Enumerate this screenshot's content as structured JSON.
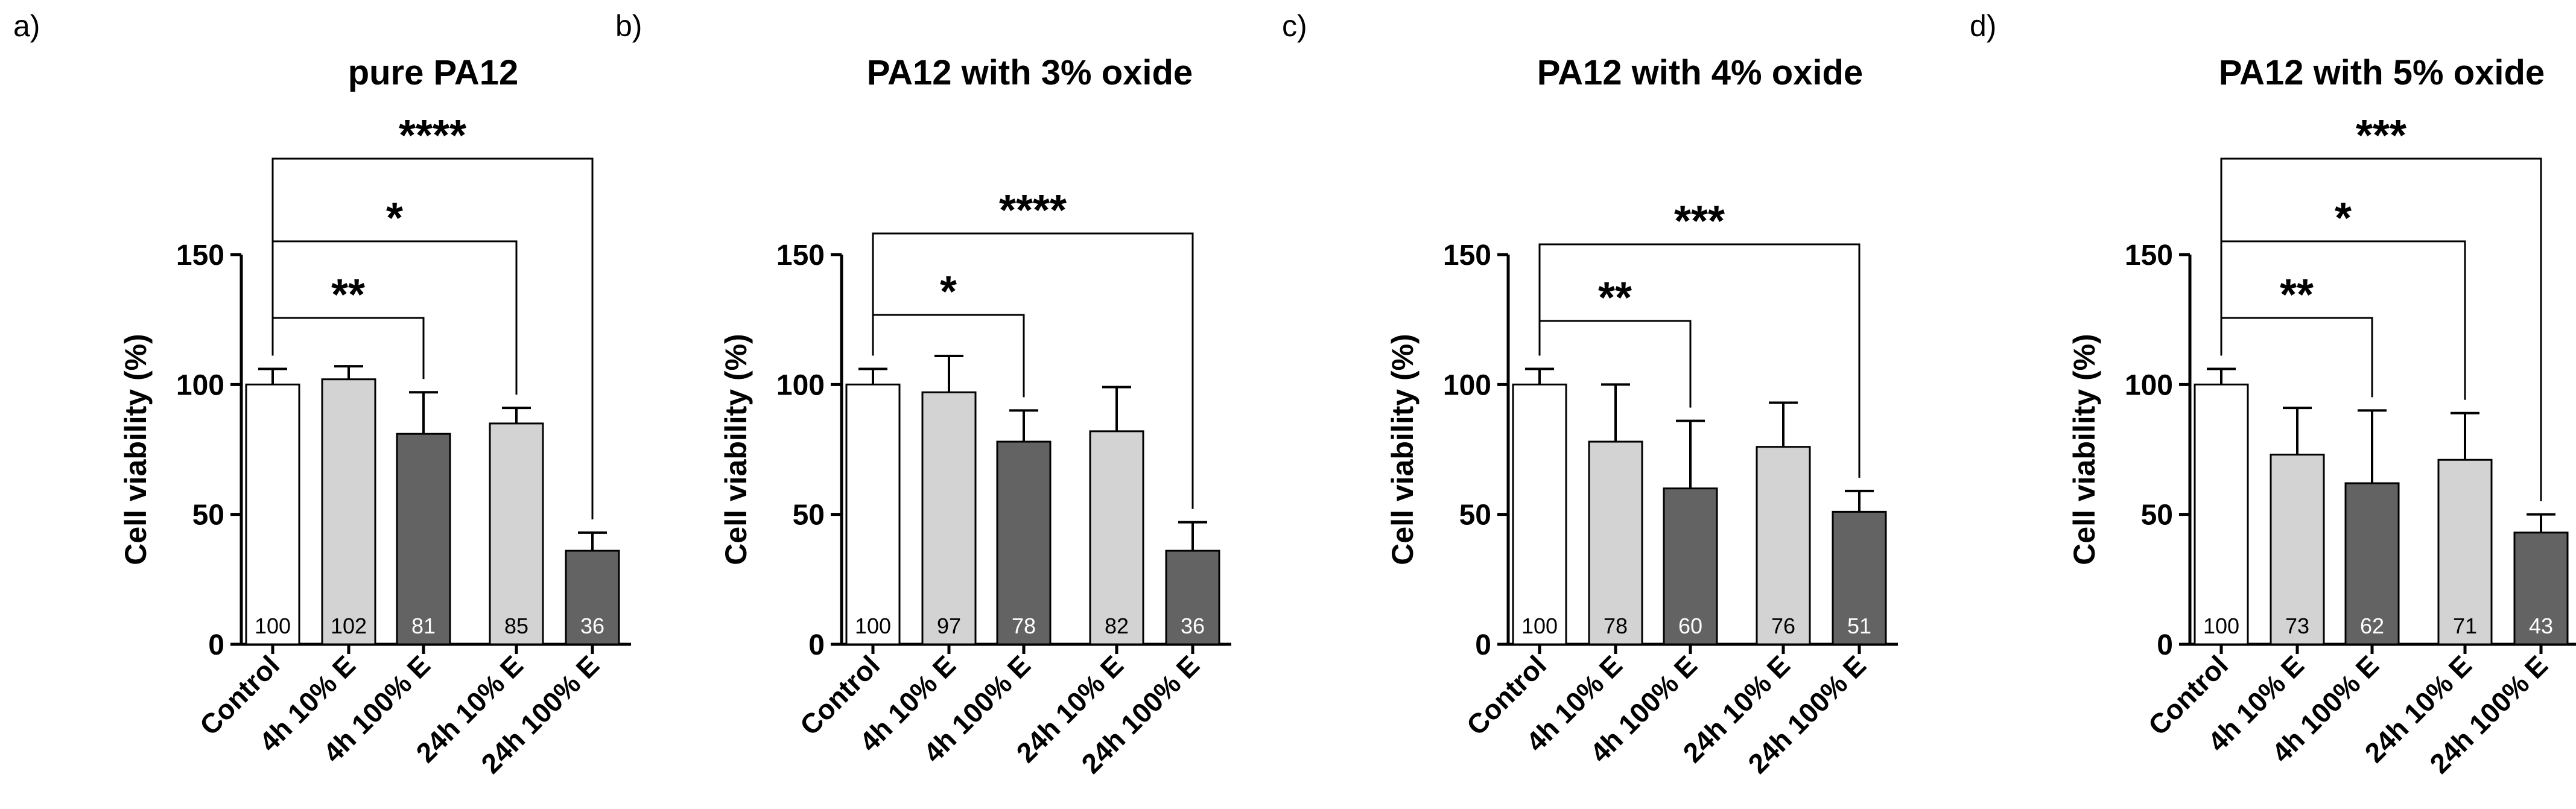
{
  "chart_data": [
    {
      "type": "bar",
      "panel": "a)",
      "title": "pure PA12",
      "ylabel": "Cell viability (%)",
      "xlabel": "",
      "ylim": [
        0,
        150
      ],
      "yticks": [
        0,
        50,
        100,
        150
      ],
      "categories": [
        "Control",
        "4h 10% E",
        "4h 100% E",
        "24h 10% E",
        "24h 100% E"
      ],
      "values": [
        100,
        102,
        81,
        85,
        36
      ],
      "value_labels": [
        "100",
        "102",
        "81",
        "85",
        "36"
      ],
      "errors": [
        6,
        5,
        16,
        6,
        7
      ],
      "colors": [
        "#ffffff",
        "#d3d3d3",
        "#636363",
        "#d3d3d3",
        "#636363"
      ],
      "significance": [
        {
          "from": "Control",
          "to": "4h 100% E",
          "label": "**"
        },
        {
          "from": "Control",
          "to": "24h 10% E",
          "label": "*"
        },
        {
          "from": "Control",
          "to": "24h 100% E",
          "label": "****"
        }
      ]
    },
    {
      "type": "bar",
      "panel": "b)",
      "title": "PA12 with 3% oxide",
      "ylabel": "Cell viability (%)",
      "xlabel": "",
      "ylim": [
        0,
        150
      ],
      "yticks": [
        0,
        50,
        100,
        150
      ],
      "categories": [
        "Control",
        "4h 10% E",
        "4h 100% E",
        "24h 10% E",
        "24h 100% E"
      ],
      "values": [
        100,
        97,
        78,
        82,
        36
      ],
      "value_labels": [
        "100",
        "97",
        "78",
        "82",
        "36"
      ],
      "errors": [
        6,
        14,
        12,
        17,
        11
      ],
      "colors": [
        "#ffffff",
        "#d3d3d3",
        "#636363",
        "#d3d3d3",
        "#636363"
      ],
      "significance": [
        {
          "from": "Control",
          "to": "4h 100% E",
          "label": "*"
        },
        {
          "from": "Control",
          "to": "24h 100% E",
          "label": "****"
        }
      ]
    },
    {
      "type": "bar",
      "panel": "c)",
      "title": "PA12 with 4% oxide",
      "ylabel": "Cell viability (%)",
      "xlabel": "",
      "ylim": [
        0,
        150
      ],
      "yticks": [
        0,
        50,
        100,
        150
      ],
      "categories": [
        "Control",
        "4h 10% E",
        "4h 100% E",
        "24h 10% E",
        "24h 100% E"
      ],
      "values": [
        100,
        78,
        60,
        76,
        51
      ],
      "value_labels": [
        "100",
        "78",
        "60",
        "76",
        "51"
      ],
      "errors": [
        6,
        22,
        26,
        17,
        8
      ],
      "colors": [
        "#ffffff",
        "#d3d3d3",
        "#636363",
        "#d3d3d3",
        "#636363"
      ],
      "significance": [
        {
          "from": "Control",
          "to": "4h 100% E",
          "label": "**"
        },
        {
          "from": "Control",
          "to": "24h 100% E",
          "label": "***"
        }
      ]
    },
    {
      "type": "bar",
      "panel": "d)",
      "title": "PA12 with 5% oxide",
      "ylabel": "Cell viability (%)",
      "xlabel": "",
      "ylim": [
        0,
        150
      ],
      "yticks": [
        0,
        50,
        100,
        150
      ],
      "categories": [
        "Control",
        "4h 10% E",
        "4h 100% E",
        "24h 10% E",
        "24h 100% E"
      ],
      "values": [
        100,
        73,
        62,
        71,
        43
      ],
      "value_labels": [
        "100",
        "73",
        "62",
        "71",
        "43"
      ],
      "errors": [
        6,
        18,
        28,
        18,
        7
      ],
      "colors": [
        "#ffffff",
        "#d3d3d3",
        "#636363",
        "#d3d3d3",
        "#636363"
      ],
      "significance": [
        {
          "from": "Control",
          "to": "4h 100% E",
          "label": "**"
        },
        {
          "from": "Control",
          "to": "24h 10% E",
          "label": "*"
        },
        {
          "from": "Control",
          "to": "24h 100% E",
          "label": "***"
        }
      ]
    }
  ]
}
